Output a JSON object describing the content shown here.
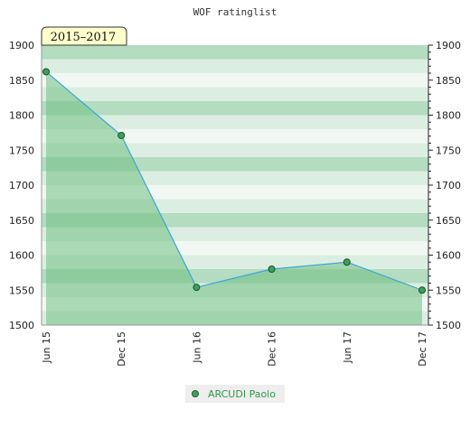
{
  "chart_data": {
    "type": "area",
    "title": "WOF ratinglist",
    "period_label": "2015–2017",
    "categories": [
      "Jun 15",
      "Dec 15",
      "Jun 16",
      "Dec 16",
      "Jun 17",
      "Dec 17"
    ],
    "series": [
      {
        "name": "ARCUDI Paolo",
        "values": [
          1862,
          1771,
          1554,
          1580,
          1590,
          1550
        ],
        "color": "#3aa6d8",
        "marker_color": "#3aa35a"
      }
    ],
    "ylim": [
      1500,
      1900
    ],
    "yticks": [
      1500,
      1550,
      1600,
      1650,
      1700,
      1750,
      1800,
      1850,
      1900
    ],
    "axis_labels_left": [
      "1500",
      "1550",
      "1600",
      "1650",
      "1700",
      "1750",
      "1800",
      "1850",
      "1900"
    ],
    "axis_labels_right": [
      "1500",
      "1550",
      "1600",
      "1650",
      "1700",
      "1750",
      "1800",
      "1850",
      "1900"
    ],
    "grid": true,
    "legend_position": "bottom-center",
    "colors": {
      "band_light": "#f1f8f3",
      "band_mid": "#dbeee1",
      "band_dark": "#b3dcc0",
      "area_fill": "#6fbf82",
      "period_bg": "#ffffcc"
    }
  }
}
